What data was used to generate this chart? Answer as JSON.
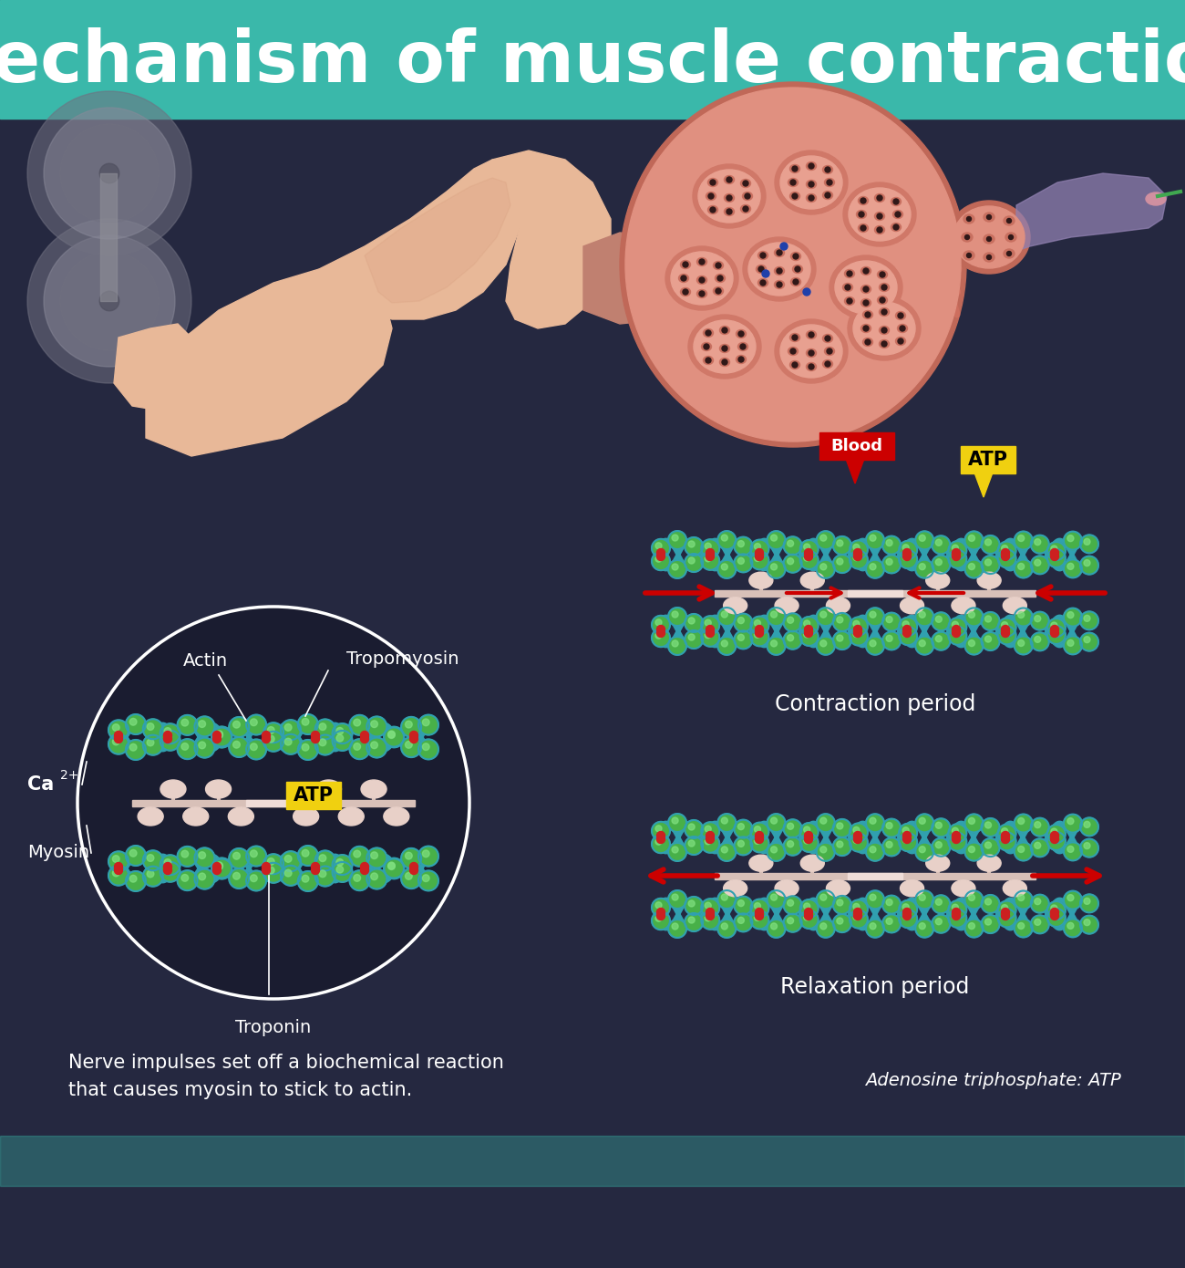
{
  "title": "Mechanism of muscle contraction",
  "title_color": "#ffffff",
  "title_bg_color": "#3ab8aa",
  "title_fontsize": 56,
  "bg_color": "#252840",
  "text_color": "#ffffff",
  "actin_label": "Actin",
  "tropomyosin_label": "Tropomyosin",
  "ca_label": "Ca",
  "ca_sup": "2+",
  "atp_label": "ATP",
  "myosin_label": "Myosin",
  "troponin_label": "Troponin",
  "contraction_label": "Contraction period",
  "relaxation_label": "Relaxation period",
  "nerve_text_line1": "Nerve impulses set off a biochemical reaction",
  "nerve_text_line2": "that causes myosin to stick to actin.",
  "atp_full": "Adenosine triphosphate: ATP",
  "blood_label": "Blood",
  "arm_skin": "#e8b898",
  "arm_skin_dark": "#d4997a",
  "muscle_outer": "#d48878",
  "muscle_inner": "#c07060",
  "muscle_fiber": "#e09080",
  "actin_blue": "#3090c8",
  "actin_green": "#48b048",
  "actin_teal": "#30a0b0",
  "myosin_light": "#e8d0c8",
  "myosin_rod": "#d8c0b8",
  "troponin_red": "#cc2020",
  "arrow_red": "#cc0000",
  "blood_red": "#cc0000",
  "atp_yellow": "#f0d010",
  "gray_weight": "#888090",
  "circle_bg": "#1a1c30",
  "white": "#ffffff",
  "title_bar_height": 130,
  "fig_w": 1300,
  "fig_h": 1390
}
